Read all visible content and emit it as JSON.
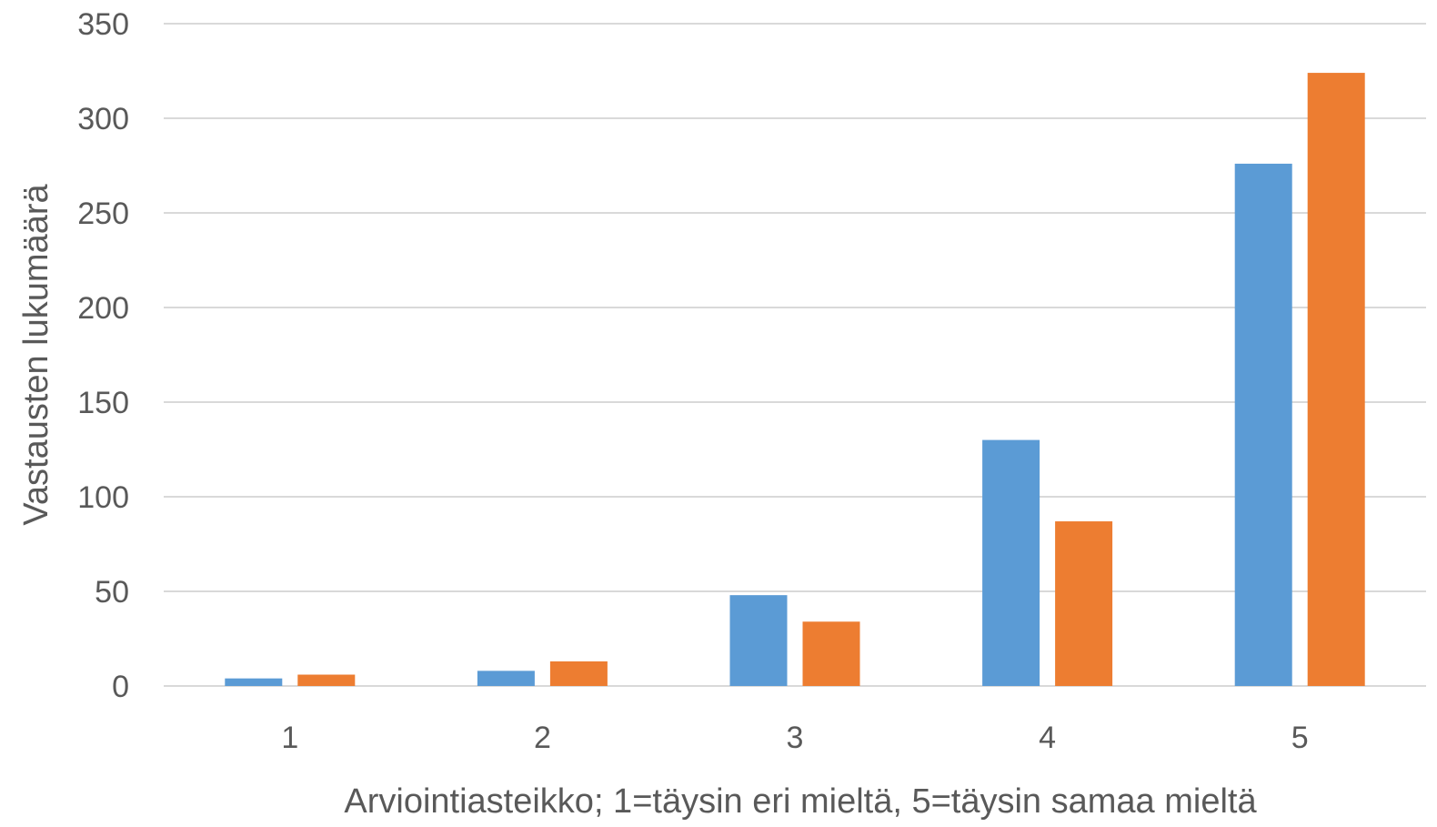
{
  "chart_data": {
    "type": "bar",
    "title": "",
    "xlabel": "Arviointiasteikko; 1=täysin eri mieltä, 5=täysin samaa mieltä",
    "ylabel": "Vastausten lukumäärä",
    "categories": [
      "1",
      "2",
      "3",
      "4",
      "5"
    ],
    "series": [
      {
        "color": "#5b9bd5",
        "values": [
          4,
          8,
          48,
          130,
          276
        ]
      },
      {
        "color": "#ed7d31",
        "values": [
          6,
          13,
          34,
          87,
          324
        ]
      }
    ],
    "ylim": [
      0,
      350
    ],
    "yticks": [
      "0",
      "50",
      "100",
      "150",
      "200",
      "250",
      "300",
      "350"
    ],
    "grid": true,
    "legend": "none"
  }
}
